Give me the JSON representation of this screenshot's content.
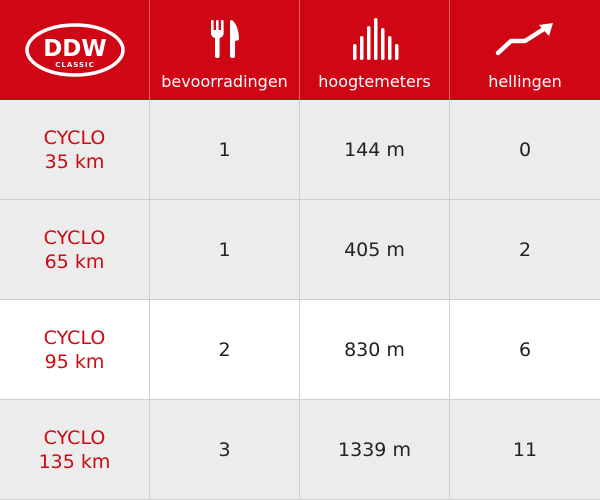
{
  "brand": {
    "logo_main": "DDW",
    "logo_sub": "CLASSIC",
    "accent_color": "#cf0614"
  },
  "columns": [
    {
      "label": "bevoorradingen",
      "icon": "fork-knife-icon"
    },
    {
      "label": "hoogtemeters",
      "icon": "elevation-bars-icon"
    },
    {
      "label": "hellingen",
      "icon": "trend-up-arrow-icon"
    }
  ],
  "rows": [
    {
      "type": "CYCLO",
      "distance": "35 km",
      "bevoorradingen": "1",
      "hoogtemeters": "144 m",
      "hellingen": "0"
    },
    {
      "type": "CYCLO",
      "distance": "65 km",
      "bevoorradingen": "1",
      "hoogtemeters": "405 m",
      "hellingen": "2"
    },
    {
      "type": "CYCLO",
      "distance": "95 km",
      "bevoorradingen": "2",
      "hoogtemeters": "830 m",
      "hellingen": "6"
    },
    {
      "type": "CYCLO",
      "distance": "135 km",
      "bevoorradingen": "3",
      "hoogtemeters": "1339 m",
      "hellingen": "11"
    }
  ]
}
